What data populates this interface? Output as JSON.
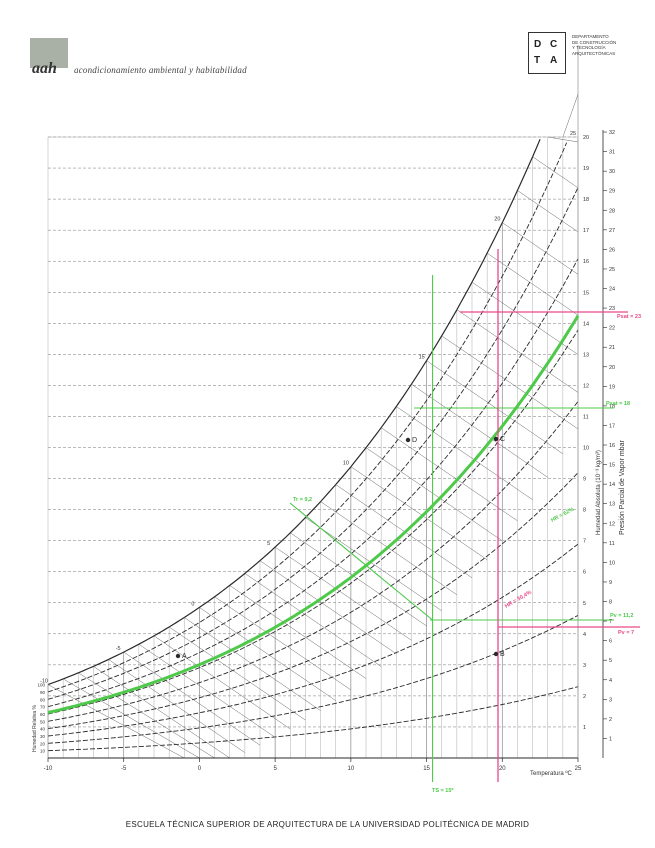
{
  "header": {
    "logo_mark": "aah",
    "logo_text": "acondicionamiento ambiental y habitabilidad",
    "dept_letters": [
      "D",
      "C",
      "T",
      "A"
    ],
    "dept_lines": [
      "DEPARTAMENTO",
      "DE CONSTRUCCIÓN",
      "Y TECNOLOGÍA",
      "ARQUITECTÓNICAS"
    ]
  },
  "footer": {
    "text": "ESCUELA TÉCNICA SUPERIOR DE ARQUITECTURA DE LA UNIVERSIDAD POLITÉCNICA DE MADRID"
  },
  "colors": {
    "accent_green": "#4ec94a",
    "accent_pink": "#e64a8a",
    "ink": "#2a2a2a"
  },
  "chart_data": {
    "type": "line",
    "title": "",
    "xlabel": "Temperatura ºC",
    "ylabel": "Humedad Absoluta (10⁻³ kg/m³)",
    "y2label": "Presión Parcial de Vapor mbar",
    "left_axis_label": "Humedad Relativa %",
    "x_ticks": [
      -10,
      -5,
      0,
      5,
      10,
      15,
      20,
      25
    ],
    "xlim": [
      -10,
      25
    ],
    "ylim": [
      0,
      20
    ],
    "y_ticks": [
      1,
      2,
      3,
      4,
      5,
      6,
      7,
      8,
      9,
      10,
      11,
      12,
      13,
      14,
      15,
      16,
      17,
      18,
      19,
      20
    ],
    "y2_ticks": [
      1,
      2,
      3,
      4,
      5,
      6,
      7,
      8,
      9,
      10,
      11,
      12,
      13,
      14,
      15,
      16,
      17,
      18,
      19,
      20,
      21,
      22,
      23,
      24,
      25,
      26,
      27,
      28,
      29,
      30,
      31,
      32
    ],
    "rh_labels": [
      10,
      20,
      30,
      40,
      50,
      60,
      70,
      80,
      90,
      100
    ],
    "wet_bulb_labels": [
      "-10",
      "-5",
      "0",
      "5",
      "10",
      "15",
      "20",
      "25"
    ],
    "rh_curves_percent": [
      10,
      20,
      30,
      40,
      50,
      60,
      70,
      80,
      90,
      100
    ],
    "points": [
      {
        "label": "A",
        "t": 0
      },
      {
        "label": "B",
        "t": 20
      },
      {
        "label": "C",
        "t": 20
      },
      {
        "label": "D",
        "t": 13
      }
    ],
    "annotations": [
      {
        "text": "Tr = 9,2",
        "color": "#4ec94a"
      },
      {
        "text": "TS = 15º",
        "color": "#4ec94a"
      },
      {
        "text": "Psat = 18",
        "color": "#4ec94a"
      },
      {
        "text": "Pv = 11,2",
        "color": "#4ec94a"
      },
      {
        "text": "Psat = 23",
        "color": "#e64a8a"
      },
      {
        "text": "Pv = 7",
        "color": "#e64a8a"
      },
      {
        "text": "HR = 62%",
        "color": "#4ec94a"
      },
      {
        "text": "HR = 30,4%",
        "color": "#e64a8a"
      }
    ],
    "highlight_curve": "HR 62%",
    "grid": true
  }
}
